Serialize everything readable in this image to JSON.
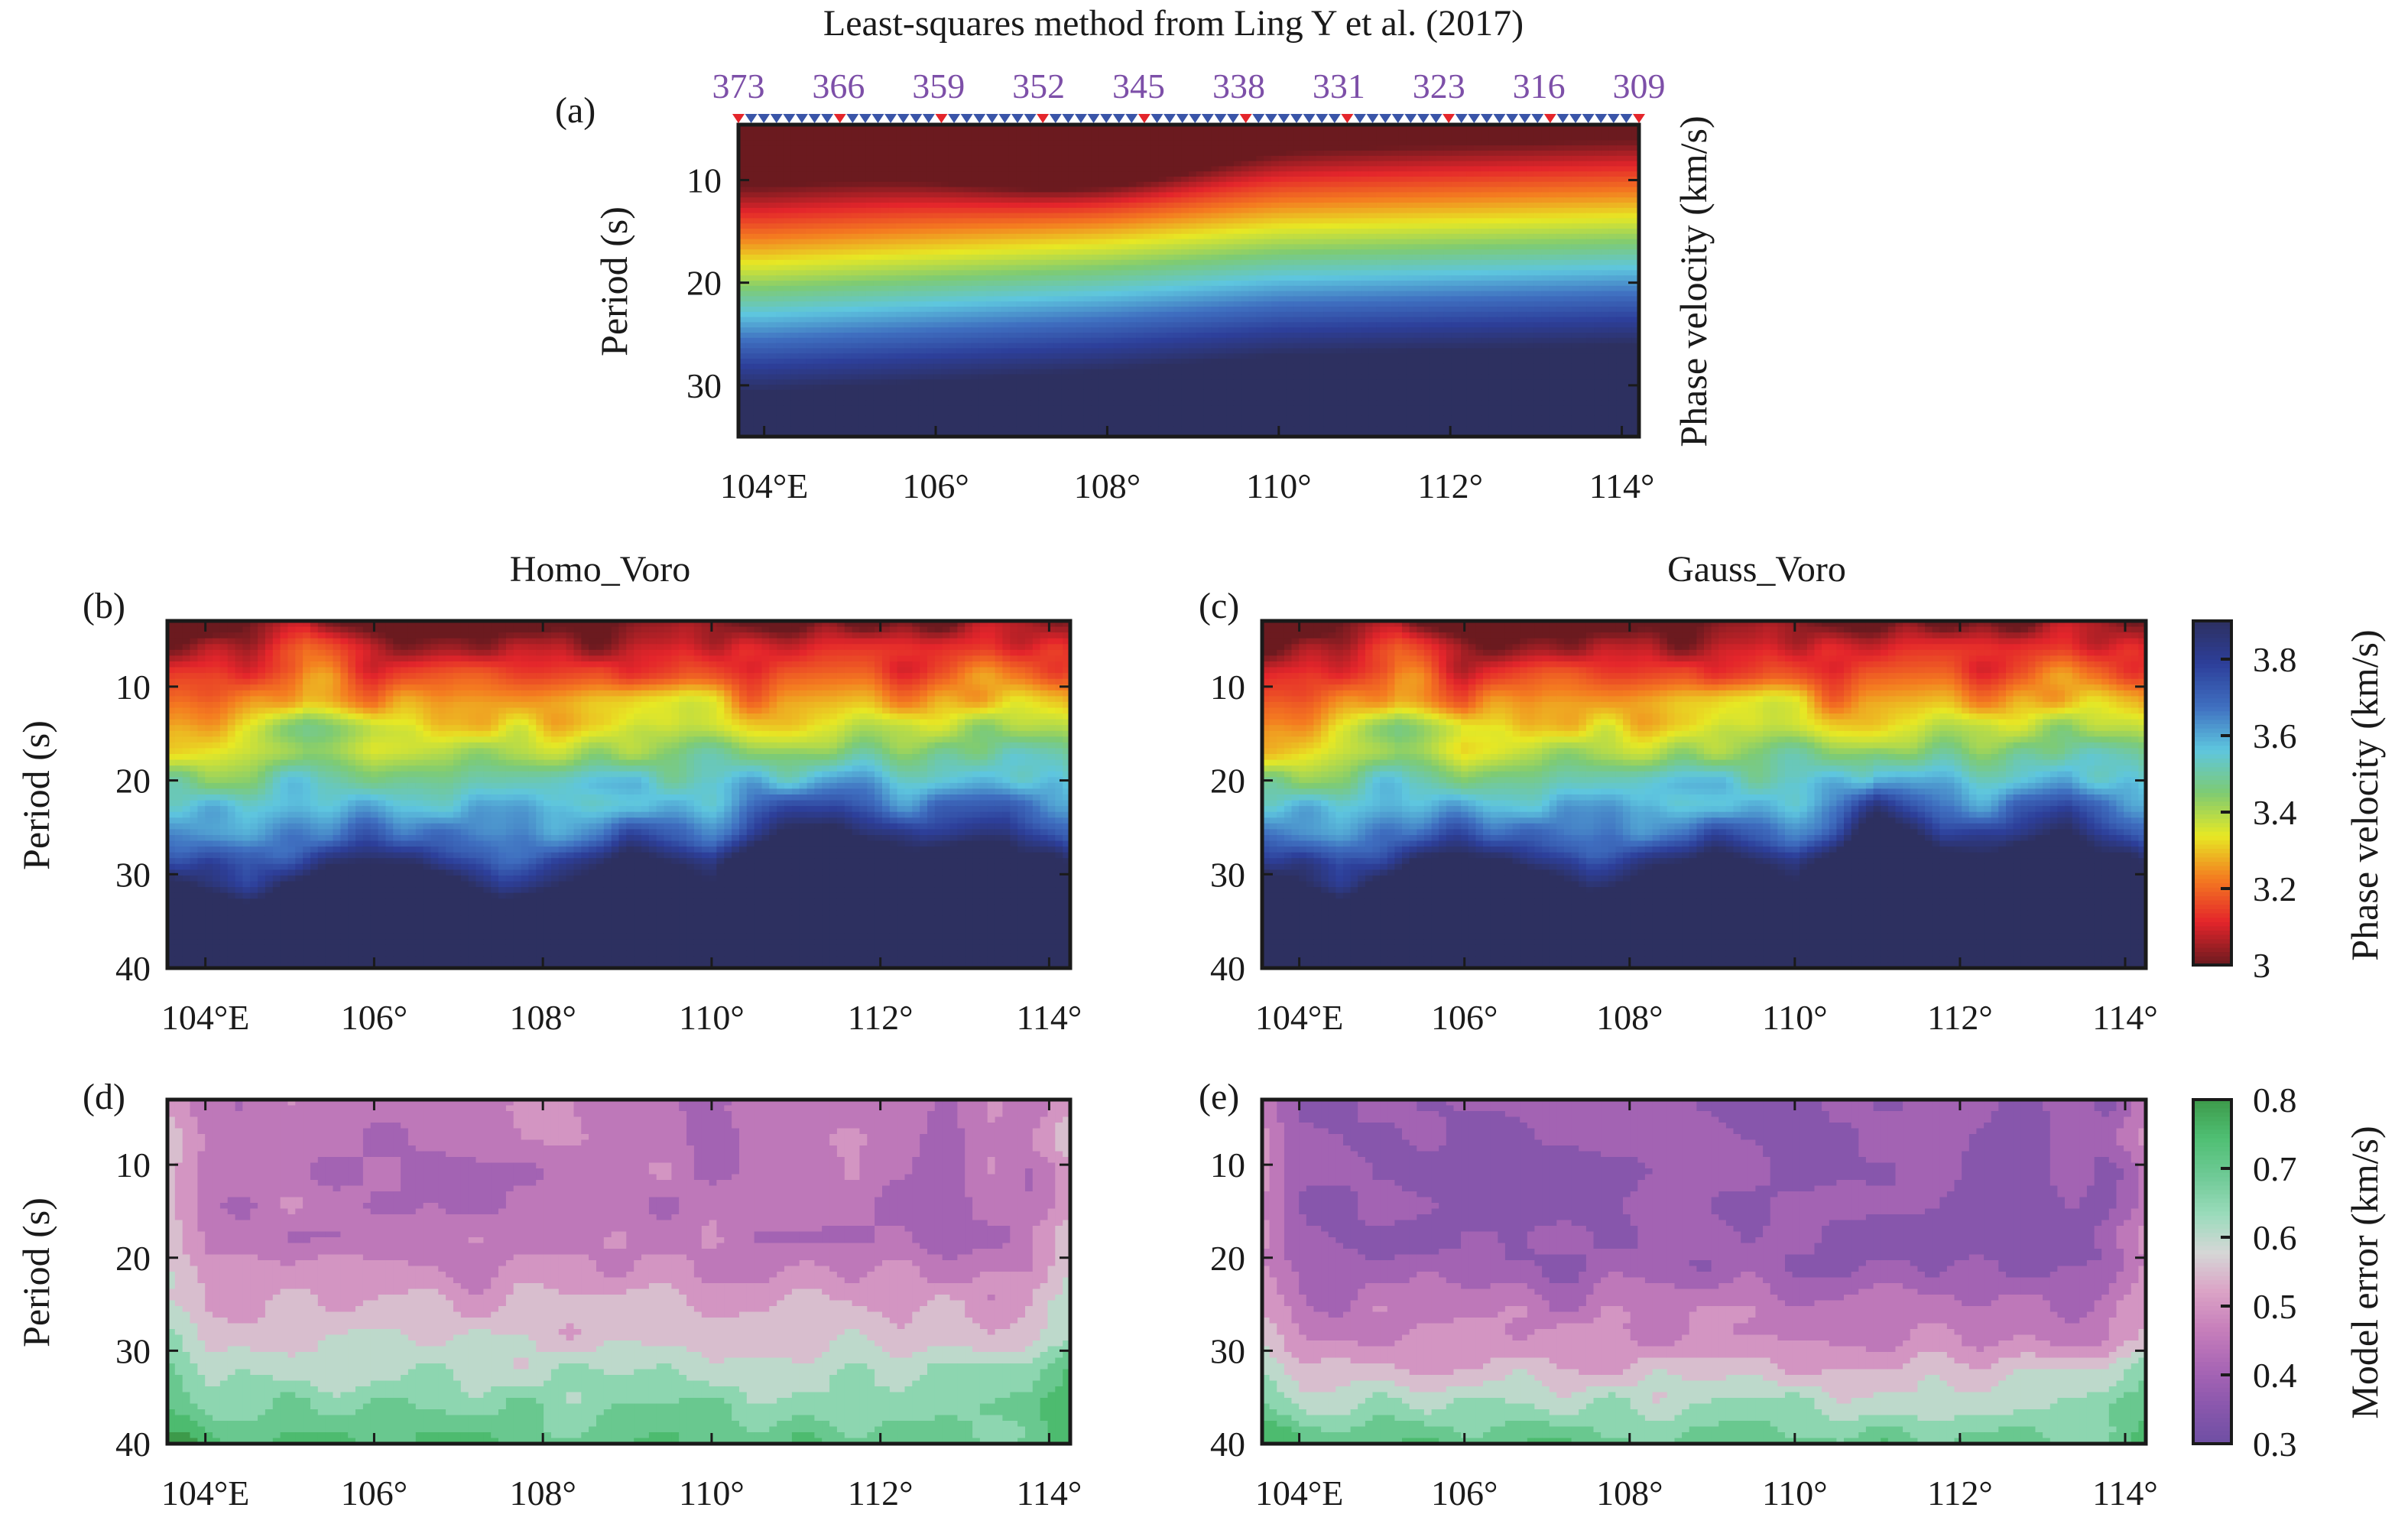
{
  "figure": {
    "title_a": "Least-squares method from Ling Y et al. (2017)",
    "title_b": "Homo_Voro",
    "title_c": "Gauss_Voro"
  },
  "station_labels": [
    "373",
    "366",
    "359",
    "352",
    "345",
    "338",
    "331",
    "323",
    "316",
    "309"
  ],
  "station_markers": {
    "count": 72,
    "red_indices": [
      0,
      8,
      16,
      24,
      32,
      40,
      48,
      56,
      64,
      71
    ],
    "colors": {
      "blue": "#3a55a8",
      "red": "#e4252b"
    }
  },
  "colormaps": {
    "velocity": [
      "#6b1a1f",
      "#e4252b",
      "#f47b20",
      "#e7e824",
      "#7ecb73",
      "#5ec6df",
      "#3f6fc0",
      "#2d3f9a",
      "#2d3060"
    ],
    "error": [
      "#6e4ea3",
      "#8a57ad",
      "#a966b5",
      "#c77fbb",
      "#dba4c6",
      "#d5d7d6",
      "#9adbbb",
      "#6fca96",
      "#4fbf73",
      "#3d9a4a"
    ]
  },
  "chart_data": [
    {
      "id": "a",
      "type": "heatmap",
      "panel_label": "(a)",
      "title": "Least-squares method from Ling Y et al. (2017)",
      "xlabel": "",
      "ylabel": "Period (s)",
      "colorbar_label": "Phase velocity (km/s)",
      "x_ticks": [
        "104°E",
        "106°",
        "108°",
        "110°",
        "112°",
        "114°"
      ],
      "x_tick_values": [
        104,
        106,
        108,
        110,
        112,
        114
      ],
      "y_ticks": [
        "10",
        "20",
        "30"
      ],
      "y_tick_values": [
        10,
        20,
        30
      ],
      "xlim": [
        103.7,
        114.2
      ],
      "ylim": [
        4.6,
        35
      ],
      "zlim": [
        3.0,
        3.9
      ],
      "top_axis_station_labels": [
        "373",
        "366",
        "359",
        "352",
        "345",
        "338",
        "331",
        "323",
        "316",
        "309"
      ],
      "field_description": "smooth velocity increasing with period; slowest (~3.0) near 107-108°E at short period; contours rise eastward",
      "isoline_period_at_3_4": {
        "x": [
          104,
          106,
          108,
          110,
          112,
          114
        ],
        "y": [
          19.5,
          18.5,
          17.5,
          16.0,
          15.5,
          15.0
        ]
      }
    },
    {
      "id": "b",
      "type": "heatmap",
      "panel_label": "(b)",
      "title": "Homo_Voro",
      "ylabel": "Period (s)",
      "x_ticks": [
        "104°E",
        "106°",
        "108°",
        "110°",
        "112°",
        "114°"
      ],
      "x_tick_values": [
        104,
        106,
        108,
        110,
        112,
        114
      ],
      "y_ticks": [
        "10",
        "20",
        "30",
        "40"
      ],
      "y_tick_values": [
        10,
        20,
        30,
        40
      ],
      "xlim": [
        103.55,
        114.25
      ],
      "ylim": [
        3,
        40
      ],
      "zlim": [
        3.0,
        3.9
      ],
      "isoline_period_at_3_4": {
        "x": [
          103.6,
          104.5,
          105.2,
          106.0,
          107.0,
          108.0,
          109.0,
          109.7,
          110.5,
          111.5,
          112.5,
          113.3,
          114.2
        ],
        "y": [
          18,
          16.5,
          13.5,
          17,
          16,
          17,
          16,
          14,
          16.5,
          16,
          16,
          14,
          15
        ]
      },
      "isoline_period_at_3_7": {
        "x": [
          103.6,
          104.5,
          105.5,
          106.5,
          107.5,
          108.3,
          109.0,
          110.0,
          110.5,
          111.5,
          112.5,
          113.5,
          114.2
        ],
        "y": [
          27,
          29,
          26,
          26,
          29,
          27,
          25,
          27,
          23,
          22,
          24,
          23,
          26
        ]
      }
    },
    {
      "id": "c",
      "type": "heatmap",
      "panel_label": "(c)",
      "title": "Gauss_Voro",
      "ylabel": "",
      "x_ticks": [
        "104°E",
        "106°",
        "108°",
        "110°",
        "112°",
        "114°"
      ],
      "x_tick_values": [
        104,
        106,
        108,
        110,
        112,
        114
      ],
      "y_ticks": [
        "10",
        "20",
        "30",
        "40"
      ],
      "y_tick_values": [
        10,
        20,
        30,
        40
      ],
      "xlim": [
        103.55,
        114.25
      ],
      "ylim": [
        3,
        40
      ],
      "zlim": [
        3.0,
        3.9
      ],
      "colorbar": {
        "label": "Phase velocity (km/s)",
        "ticks": [
          "3",
          "3.2",
          "3.4",
          "3.6",
          "3.8"
        ],
        "tick_values": [
          3.0,
          3.2,
          3.4,
          3.6,
          3.8
        ],
        "range": [
          3.0,
          3.9
        ]
      },
      "isoline_period_at_3_4": {
        "x": [
          103.6,
          104.5,
          105.2,
          106.0,
          107.0,
          108.0,
          109.0,
          109.7,
          110.5,
          111.5,
          112.5,
          113.3,
          114.2
        ],
        "y": [
          19,
          16.5,
          14,
          18,
          16,
          17,
          16,
          14,
          16.5,
          16,
          16,
          14,
          15.5
        ]
      },
      "isoline_period_at_3_7": {
        "x": [
          103.6,
          104.5,
          105.5,
          106.5,
          107.5,
          108.3,
          109.0,
          110.0,
          111.0,
          111.8,
          112.5,
          113.3,
          114.2
        ],
        "y": [
          26,
          28.5,
          25,
          25.5,
          28,
          26,
          25,
          27,
          21,
          24,
          24,
          22,
          26
        ]
      }
    },
    {
      "id": "d",
      "type": "heatmap",
      "panel_label": "(d)",
      "title": "",
      "ylabel": "Period (s)",
      "x_ticks": [
        "104°E",
        "106°",
        "108°",
        "110°",
        "112°",
        "114°"
      ],
      "x_tick_values": [
        104,
        106,
        108,
        110,
        112,
        114
      ],
      "y_ticks": [
        "10",
        "20",
        "30",
        "40"
      ],
      "y_tick_values": [
        10,
        20,
        30,
        40
      ],
      "xlim": [
        103.55,
        114.25
      ],
      "ylim": [
        3,
        40
      ],
      "zlim": [
        0.3,
        0.8
      ],
      "contour_levels": [
        0.35,
        0.4,
        0.45,
        0.5,
        0.55,
        0.6,
        0.65,
        0.7,
        0.75
      ],
      "field_description": "Model error ~0.45 at short periods, ~0.5 near 20-25 s, rising to ~0.7 at 40 s"
    },
    {
      "id": "e",
      "type": "heatmap",
      "panel_label": "(e)",
      "title": "",
      "ylabel": "",
      "x_ticks": [
        "104°E",
        "106°",
        "108°",
        "110°",
        "112°",
        "114°"
      ],
      "x_tick_values": [
        104,
        106,
        108,
        110,
        112,
        114
      ],
      "y_ticks": [
        "10",
        "20",
        "30",
        "40"
      ],
      "y_tick_values": [
        10,
        20,
        30,
        40
      ],
      "xlim": [
        103.55,
        114.25
      ],
      "ylim": [
        3,
        40
      ],
      "zlim": [
        0.3,
        0.8
      ],
      "colorbar": {
        "label": "Model error (km/s)",
        "ticks": [
          "0.3",
          "0.4",
          "0.5",
          "0.6",
          "0.7",
          "0.8"
        ],
        "tick_values": [
          0.3,
          0.4,
          0.5,
          0.6,
          0.7,
          0.8
        ],
        "range": [
          0.3,
          0.8
        ]
      },
      "field_description": "Model error ~0.35-0.4 at short periods, ~0.5 near 30 s, rising to ~0.7 at 40 s"
    }
  ]
}
